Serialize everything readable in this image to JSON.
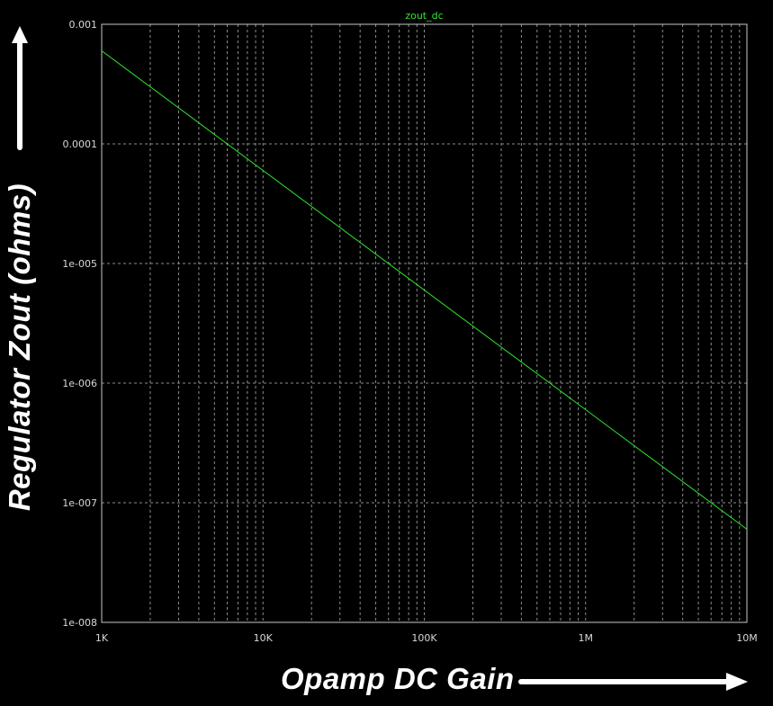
{
  "chart_data": {
    "type": "line",
    "x_scale": "log",
    "y_scale": "log",
    "xlim": [
      1000,
      10000000
    ],
    "ylim": [
      1e-08,
      0.001
    ],
    "x_ticks": [
      {
        "value": 1000,
        "label": "1K"
      },
      {
        "value": 10000,
        "label": "10K"
      },
      {
        "value": 100000,
        "label": "100K"
      },
      {
        "value": 1000000,
        "label": "1M"
      },
      {
        "value": 10000000,
        "label": "10M"
      }
    ],
    "y_ticks": [
      {
        "value": 0.001,
        "label": "0.001"
      },
      {
        "value": 0.0001,
        "label": "0.0001"
      },
      {
        "value": 1e-05,
        "label": "1e-005"
      },
      {
        "value": 1e-06,
        "label": "1e-006"
      },
      {
        "value": 1e-07,
        "label": "1e-007"
      },
      {
        "value": 1e-08,
        "label": "1e-008"
      }
    ],
    "grid": true,
    "xlabel": "Opamp DC Gain",
    "ylabel": "Regulator Zout (ohms)",
    "series": [
      {
        "name": "zout_dc",
        "color": "#2ee62e",
        "x": [
          1000,
          10000000
        ],
        "y": [
          0.0006,
          6e-08
        ]
      }
    ]
  },
  "colors": {
    "background": "#000000",
    "grid": "#8c8c8c",
    "axis": "#c8c8c8",
    "trace": "#2ee62e",
    "label": "#ffffff"
  }
}
